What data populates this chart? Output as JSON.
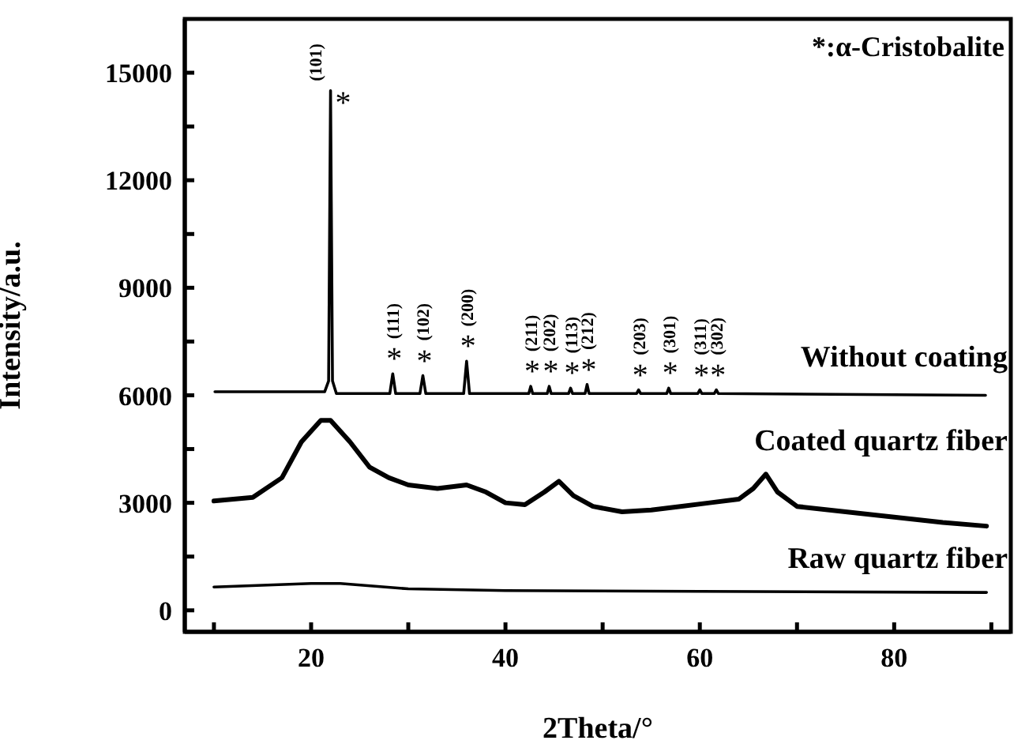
{
  "chart_data": {
    "type": "line",
    "xlabel": "2Theta/°",
    "ylabel": "Intensity/a.u.",
    "xlim": [
      7,
      92
    ],
    "ylim": [
      -600,
      16500
    ],
    "xticks": [
      {
        "value": 10,
        "label": null
      },
      20,
      {
        "value": 30,
        "label": null
      },
      40,
      {
        "value": 50,
        "label": null
      },
      60,
      {
        "value": 70,
        "label": null
      },
      80,
      {
        "value": 90,
        "label": null
      }
    ],
    "yticks": [
      0,
      {
        "value": 1500,
        "label": null
      },
      3000,
      {
        "value": 4500,
        "label": null
      },
      6000,
      {
        "value": 7500,
        "label": null
      },
      9000,
      {
        "value": 10500,
        "label": null
      },
      12000,
      {
        "value": 13500,
        "label": null
      },
      15000
    ],
    "grid": false,
    "marker": "none",
    "line_style": "solid",
    "series": [
      {
        "name": "Without  coating",
        "color": "#000000",
        "x": [
          10.1,
          21.4,
          21.8,
          22.0,
          22.2,
          22.6,
          28.1,
          28.4,
          28.7,
          31.2,
          31.5,
          31.8,
          35.7,
          36.0,
          36.3,
          42.4,
          42.6,
          42.8,
          44.3,
          44.5,
          44.7,
          46.5,
          46.7,
          46.9,
          48.2,
          48.4,
          48.6,
          53.5,
          53.7,
          53.9,
          56.6,
          56.8,
          57.0,
          59.8,
          60.0,
          60.2,
          61.5,
          61.7,
          61.9,
          89.4
        ],
        "values": [
          6100,
          6100,
          6400,
          14500,
          6400,
          6050,
          6050,
          6600,
          6050,
          6050,
          6550,
          6050,
          6050,
          6950,
          6050,
          6050,
          6250,
          6050,
          6050,
          6250,
          6050,
          6050,
          6200,
          6050,
          6050,
          6300,
          6050,
          6050,
          6150,
          6050,
          6050,
          6200,
          6050,
          6050,
          6150,
          6050,
          6050,
          6150,
          6050,
          6000
        ]
      },
      {
        "name": "Coated quartz fiber",
        "color": "#000000",
        "x": [
          10,
          14,
          17,
          19,
          21,
          22,
          24,
          26,
          28,
          30,
          33,
          36,
          38,
          40,
          42,
          44,
          45.5,
          47,
          49,
          52,
          55,
          58,
          61,
          64,
          65.5,
          66.8,
          68,
          70,
          75,
          80,
          85,
          89.5
        ],
        "values": [
          3050,
          3150,
          3700,
          4700,
          5300,
          5300,
          4700,
          4000,
          3700,
          3500,
          3400,
          3500,
          3300,
          3000,
          2950,
          3300,
          3600,
          3200,
          2900,
          2750,
          2800,
          2900,
          3000,
          3100,
          3400,
          3800,
          3300,
          2900,
          2750,
          2600,
          2450,
          2350
        ]
      },
      {
        "name": "Raw quartz fiber",
        "color": "#000000",
        "x": [
          10,
          20,
          23,
          30,
          40,
          60,
          89.5
        ],
        "values": [
          650,
          750,
          750,
          600,
          550,
          530,
          500
        ]
      }
    ],
    "annotations": [
      "*:α-Cristobalite",
      {
        "text": "*",
        "x": 22.0,
        "y": 14500
      },
      {
        "text": "(101)",
        "x": 22.0,
        "y": 14500
      },
      {
        "text": "*",
        "x": 28.4,
        "y": 6600
      },
      {
        "text": "(111)",
        "x": 28.4,
        "y": 6600
      },
      {
        "text": "*",
        "x": 31.5,
        "y": 6550
      },
      {
        "text": "(102)",
        "x": 31.5,
        "y": 6550
      },
      {
        "text": "*",
        "x": 36.0,
        "y": 6950
      },
      {
        "text": "(200)",
        "x": 36.0,
        "y": 6950
      },
      {
        "text": "*",
        "x": 42.6,
        "y": 6250
      },
      {
        "text": "(211)",
        "x": 42.6,
        "y": 6250
      },
      {
        "text": "*",
        "x": 44.5,
        "y": 6250
      },
      {
        "text": "(202)",
        "x": 44.5,
        "y": 6250
      },
      {
        "text": "*",
        "x": 46.7,
        "y": 6200
      },
      {
        "text": "(113)",
        "x": 46.7,
        "y": 6200
      },
      {
        "text": "*",
        "x": 48.4,
        "y": 6300
      },
      {
        "text": "(212)",
        "x": 48.4,
        "y": 6300
      },
      {
        "text": "*",
        "x": 53.7,
        "y": 6150
      },
      {
        "text": "(203)",
        "x": 53.7,
        "y": 6150
      },
      {
        "text": "*",
        "x": 56.8,
        "y": 6200
      },
      {
        "text": "(301)",
        "x": 56.8,
        "y": 6200
      },
      {
        "text": "*",
        "x": 60.0,
        "y": 6150
      },
      {
        "text": "(311)",
        "x": 60.0,
        "y": 6150
      },
      {
        "text": "*",
        "x": 61.7,
        "y": 6150
      },
      {
        "text": "(302)",
        "x": 61.7,
        "y": 6150
      }
    ]
  }
}
